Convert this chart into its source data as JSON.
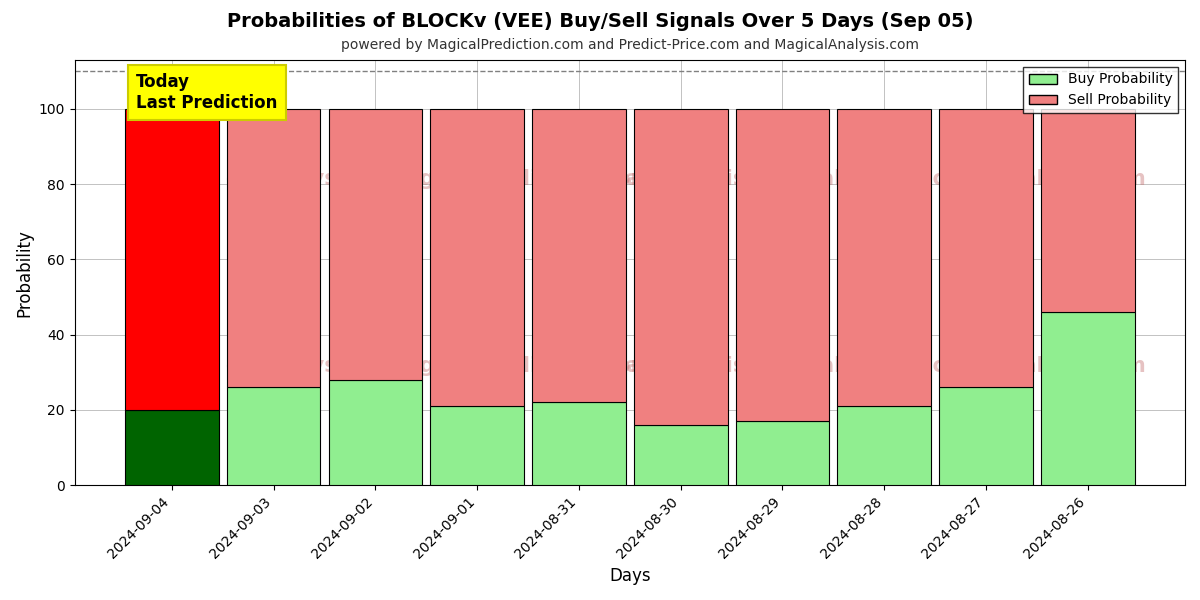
{
  "title": "Probabilities of BLOCKv (VEE) Buy/Sell Signals Over 5 Days (Sep 05)",
  "subtitle": "powered by MagicalPrediction.com and Predict-Price.com and MagicalAnalysis.com",
  "xlabel": "Days",
  "ylabel": "Probability",
  "categories": [
    "2024-09-04",
    "2024-09-03",
    "2024-09-02",
    "2024-09-01",
    "2024-08-31",
    "2024-08-30",
    "2024-08-29",
    "2024-08-28",
    "2024-08-27",
    "2024-08-26"
  ],
  "buy_values": [
    20,
    26,
    28,
    21,
    22,
    16,
    17,
    21,
    26,
    46
  ],
  "sell_values": [
    80,
    74,
    72,
    79,
    78,
    84,
    83,
    79,
    74,
    54
  ],
  "today_buy_color": "#006400",
  "today_sell_color": "#ff0000",
  "buy_color": "#90ee90",
  "sell_color": "#f08080",
  "today_label_bg": "#ffff00",
  "today_label_text": "Today\nLast Prediction",
  "legend_buy": "Buy Probability",
  "legend_sell": "Sell Probability",
  "ylim": [
    0,
    113
  ],
  "dashed_line_y": 110,
  "background_color": "#ffffff",
  "grid_color": "#aaaaaa",
  "bar_edge_color": "#000000",
  "bar_width": 0.92
}
